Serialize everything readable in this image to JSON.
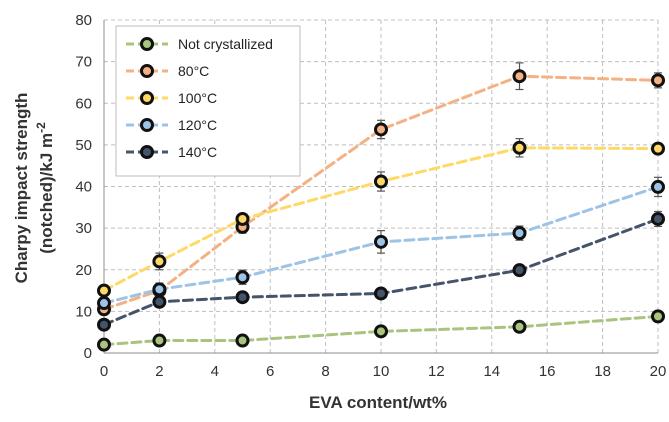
{
  "chart_data": {
    "type": "line",
    "xlabel": "EVA content/wt%",
    "ylabel_line1": "Charpy impact strength",
    "ylabel_line2": "(notched)/kJ m",
    "ylabel_sup": "-2",
    "xlim": [
      0,
      20
    ],
    "ylim": [
      0,
      80
    ],
    "xticks": [
      "0",
      "2",
      "4",
      "6",
      "8",
      "10",
      "12",
      "14",
      "16",
      "18",
      "20"
    ],
    "yticks": [
      "0",
      "10",
      "20",
      "30",
      "40",
      "50",
      "60",
      "70",
      "80"
    ],
    "grid": true,
    "legend_position": "top-left",
    "x": [
      0,
      2,
      5,
      10,
      15,
      20
    ],
    "series": [
      {
        "name": "Not crystallized",
        "color": "#a9c47f",
        "values": [
          2,
          3,
          3,
          5.2,
          6.3,
          8.8
        ],
        "errors": [
          0.4,
          0.5,
          0.4,
          0.6,
          0.7,
          0.8
        ]
      },
      {
        "name": "80°C",
        "color": "#f4b183",
        "values": [
          10.5,
          15,
          30.3,
          53.7,
          66.5,
          65.5
        ],
        "errors": [
          1,
          1.5,
          1.5,
          2.2,
          3.2,
          1.8
        ]
      },
      {
        "name": "100°C",
        "color": "#ffd966",
        "values": [
          15,
          22,
          32.2,
          41.2,
          49.3,
          49.1
        ],
        "errors": [
          1,
          2,
          1.2,
          2.3,
          2.2,
          1.2
        ]
      },
      {
        "name": "120°C",
        "color": "#9dc3e6",
        "values": [
          12,
          15.3,
          18.2,
          26.7,
          28.8,
          39.9
        ],
        "errors": [
          1,
          1.5,
          1.7,
          2.7,
          1.7,
          2.3
        ]
      },
      {
        "name": "140°C",
        "color": "#44546a",
        "values": [
          6.8,
          12.3,
          13.4,
          14.3,
          19.9,
          32.2
        ],
        "errors": [
          0.8,
          1,
          1,
          1,
          0.8,
          1.8
        ]
      }
    ]
  }
}
